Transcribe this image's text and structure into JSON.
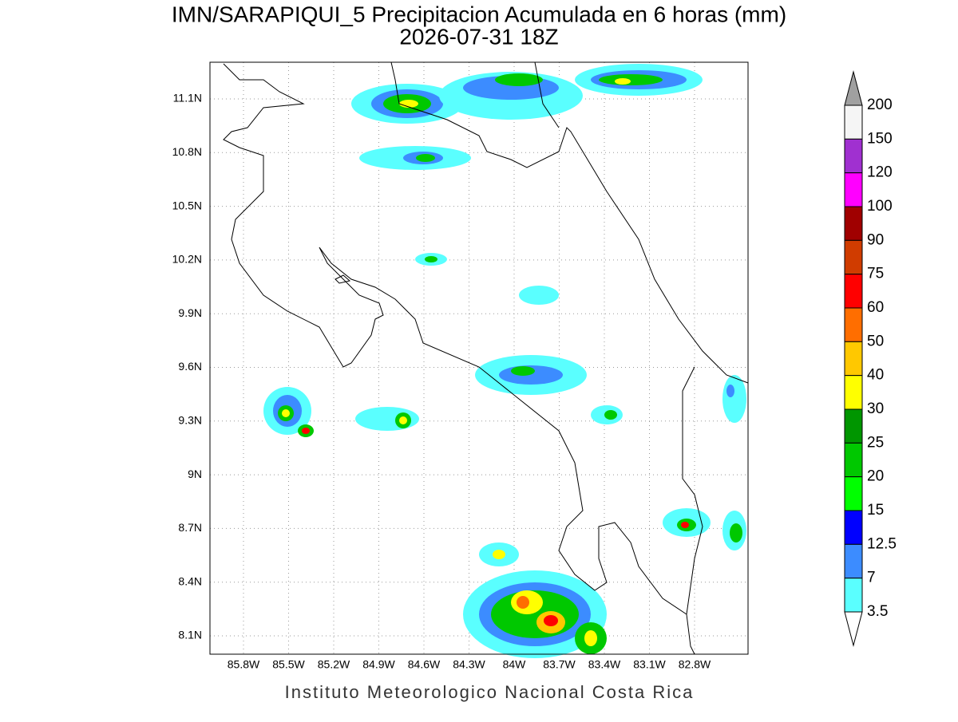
{
  "header": {
    "title": "IMN/SARAPIQUI_5 Precipitacion Acumulada en 6 horas (mm)",
    "subtitle": "2026-07-31 18Z"
  },
  "map": {
    "lon_labels": [
      "85.8W",
      "85.5W",
      "85.2W",
      "84.9W",
      "84.6W",
      "84.3W",
      "84W",
      "83.7W",
      "83.4W",
      "83.1W",
      "82.8W"
    ],
    "lat_labels": [
      "11.1N",
      "10.8N",
      "10.5N",
      "10.2N",
      "9.9N",
      "9.6N",
      "9.3N",
      "9N",
      "8.7N",
      "8.4N",
      "8.1N"
    ]
  },
  "legend": {
    "labels": [
      "200",
      "150",
      "120",
      "100",
      "90",
      "75",
      "60",
      "50",
      "40",
      "30",
      "25",
      "20",
      "15",
      "12.5",
      "7",
      "3.5"
    ],
    "colors": [
      "#f5f5f5",
      "#a030d0",
      "#ff00ff",
      "#a00000",
      "#d03c00",
      "#ff0000",
      "#ff6e00",
      "#ffc800",
      "#ffff00",
      "#009600",
      "#00c800",
      "#00ff00",
      "#0000ff",
      "#3c8cff",
      "#5affff"
    ],
    "over_color": "#a0a0a0",
    "under_color": "#ffffff"
  },
  "footer": "Instituto Meteorologico Nacional Costa Rica"
}
